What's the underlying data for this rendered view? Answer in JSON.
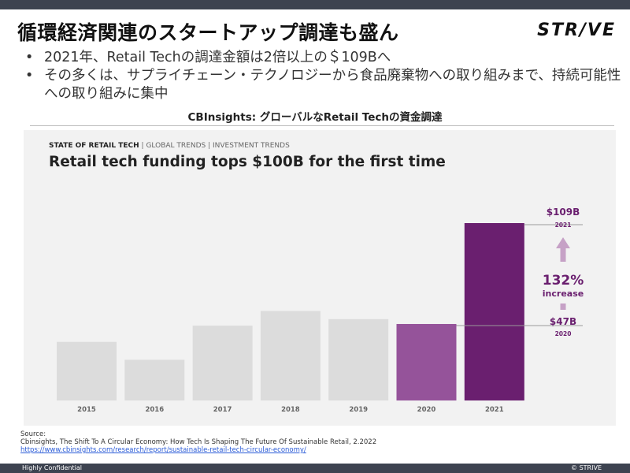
{
  "slide": {
    "title": "循環経済関連のスタートアップ調達も盛ん",
    "logo": "STR/VE",
    "bullets": [
      "2021年、Retail Techの調達金額は2倍以上の＄109Bへ",
      "その多くは、サプライチェーン・テクノロジーから食品廃棄物への取り組みまで、持続可能性への取り組みに集中"
    ],
    "caption": "CBInsights: グローバルなRetail Techの資金調達"
  },
  "chart_data": {
    "type": "bar",
    "kicker": "STATE OF RETAIL TECH",
    "kicker_parts": [
      "STATE OF RETAIL TECH",
      "|",
      "GLOBAL TRENDS",
      "|",
      "INVESTMENT TRENDS"
    ],
    "title": "Retail tech funding tops $100B for the first time",
    "categories": [
      "2015",
      "2016",
      "2017",
      "2018",
      "2019",
      "2020",
      "2021"
    ],
    "values": [
      36,
      25,
      46,
      55,
      50,
      47,
      109
    ],
    "bar_colors": [
      "#dcdcdc",
      "#dcdcdc",
      "#dcdcdc",
      "#dcdcdc",
      "#dcdcdc",
      "#95539a",
      "#6a1f6f"
    ],
    "ylim": [
      0,
      109
    ],
    "annotations": {
      "top_value": "$109B",
      "top_year": "2021",
      "increase_pct": "132%",
      "increase_word": "increase",
      "base_value": "$47B",
      "base_year": "2020",
      "color": "#6a1f6f",
      "arrow_color": "#c6a1c6"
    }
  },
  "source": {
    "label": "Source:",
    "citation": "Cbinsights, The Shift To A Circular Economy: How Tech Is Shaping The Future Of Sustainable Retail, 2.2022",
    "url": "https://www.cbinsights.com/research/report/sustainable-retail-tech-circular-economy/"
  },
  "footer": {
    "confidential": "Highly Confidential",
    "copyright": "© STRIVE"
  }
}
